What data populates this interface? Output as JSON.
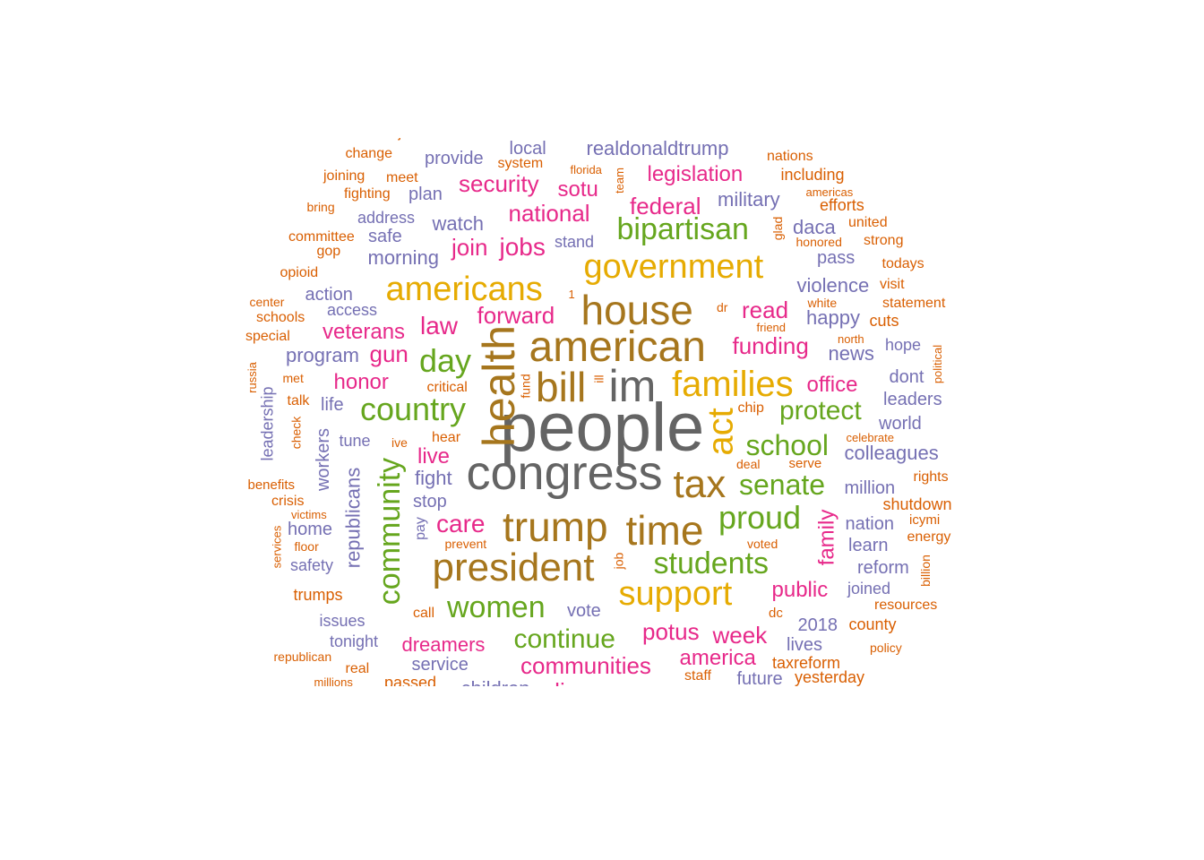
{
  "palette": {
    "gray": "#646464",
    "brown": "#a6761d",
    "gold": "#e6ab02",
    "green": "#66a61e",
    "pink": "#e7298a",
    "purple": "#7570b3",
    "orange": "#d95f02"
  },
  "words": [
    {
      "text": "people",
      "color": "gray"
    },
    {
      "text": "congress",
      "color": "gray"
    },
    {
      "text": "im",
      "color": "gray"
    },
    {
      "text": "american",
      "color": "brown"
    },
    {
      "text": "house",
      "color": "brown"
    },
    {
      "text": "bill",
      "color": "brown"
    },
    {
      "text": "health",
      "color": "brown"
    },
    {
      "text": "president",
      "color": "brown"
    },
    {
      "text": "trump",
      "color": "brown"
    },
    {
      "text": "time",
      "color": "brown"
    },
    {
      "text": "tax",
      "color": "brown"
    },
    {
      "text": "act",
      "color": "gold"
    },
    {
      "text": "families",
      "color": "gold"
    },
    {
      "text": "americans",
      "color": "gold"
    },
    {
      "text": "government",
      "color": "gold"
    },
    {
      "text": "support",
      "color": "gold"
    },
    {
      "text": "day",
      "color": "green"
    },
    {
      "text": "country",
      "color": "green"
    },
    {
      "text": "bipartisan",
      "color": "green"
    },
    {
      "text": "community",
      "color": "green"
    },
    {
      "text": "proud",
      "color": "green"
    },
    {
      "text": "students",
      "color": "green"
    },
    {
      "text": "senate",
      "color": "green"
    },
    {
      "text": "school",
      "color": "green"
    },
    {
      "text": "protect",
      "color": "green"
    },
    {
      "text": "women",
      "color": "green"
    },
    {
      "text": "continue",
      "color": "green"
    },
    {
      "text": "national",
      "color": "pink"
    },
    {
      "text": "security",
      "color": "pink"
    },
    {
      "text": "jobs",
      "color": "pink"
    },
    {
      "text": "join",
      "color": "pink"
    },
    {
      "text": "law",
      "color": "pink"
    },
    {
      "text": "forward",
      "color": "pink"
    },
    {
      "text": "veterans",
      "color": "pink"
    },
    {
      "text": "gun",
      "color": "pink"
    },
    {
      "text": "honor",
      "color": "pink"
    },
    {
      "text": "live",
      "color": "pink"
    },
    {
      "text": "care",
      "color": "pink"
    },
    {
      "text": "sotu",
      "color": "pink"
    },
    {
      "text": "federal",
      "color": "pink"
    },
    {
      "text": "legislation",
      "color": "pink"
    },
    {
      "text": "read",
      "color": "pink"
    },
    {
      "text": "funding",
      "color": "pink"
    },
    {
      "text": "office",
      "color": "pink"
    },
    {
      "text": "family",
      "color": "pink"
    },
    {
      "text": "public",
      "color": "pink"
    },
    {
      "text": "potus",
      "color": "pink"
    },
    {
      "text": "week",
      "color": "pink"
    },
    {
      "text": "america",
      "color": "pink"
    },
    {
      "text": "communities",
      "color": "pink"
    },
    {
      "text": "dreamers",
      "color": "pink"
    },
    {
      "text": "realdonaldtrump",
      "color": "purple"
    },
    {
      "text": "local",
      "color": "purple"
    },
    {
      "text": "provide",
      "color": "purple"
    },
    {
      "text": "plan",
      "color": "purple"
    },
    {
      "text": "watch",
      "color": "purple"
    },
    {
      "text": "address",
      "color": "purple"
    },
    {
      "text": "safe",
      "color": "purple"
    },
    {
      "text": "morning",
      "color": "purple"
    },
    {
      "text": "stand",
      "color": "purple"
    },
    {
      "text": "military",
      "color": "purple"
    },
    {
      "text": "daca",
      "color": "purple"
    },
    {
      "text": "pass",
      "color": "purple"
    },
    {
      "text": "violence",
      "color": "purple"
    },
    {
      "text": "happy",
      "color": "purple"
    },
    {
      "text": "news",
      "color": "purple"
    },
    {
      "text": "hope",
      "color": "purple"
    },
    {
      "text": "dont",
      "color": "purple"
    },
    {
      "text": "leaders",
      "color": "purple"
    },
    {
      "text": "world",
      "color": "purple"
    },
    {
      "text": "colleagues",
      "color": "purple"
    },
    {
      "text": "million",
      "color": "purple"
    },
    {
      "text": "nation",
      "color": "purple"
    },
    {
      "text": "learn",
      "color": "purple"
    },
    {
      "text": "reform",
      "color": "purple"
    },
    {
      "text": "joined",
      "color": "purple"
    },
    {
      "text": "action",
      "color": "purple"
    },
    {
      "text": "access",
      "color": "purple"
    },
    {
      "text": "program",
      "color": "purple"
    },
    {
      "text": "life",
      "color": "purple"
    },
    {
      "text": "tune",
      "color": "purple"
    },
    {
      "text": "workers",
      "color": "purple"
    },
    {
      "text": "republicans",
      "color": "purple"
    },
    {
      "text": "leadership",
      "color": "purple"
    },
    {
      "text": "fight",
      "color": "purple"
    },
    {
      "text": "stop",
      "color": "purple"
    },
    {
      "text": "home",
      "color": "purple"
    },
    {
      "text": "safety",
      "color": "purple"
    },
    {
      "text": "pay",
      "color": "purple"
    },
    {
      "text": "vote",
      "color": "purple"
    },
    {
      "text": "issues",
      "color": "purple"
    },
    {
      "text": "tonight",
      "color": "purple"
    },
    {
      "text": "service",
      "color": "purple"
    },
    {
      "text": "children",
      "color": "purple"
    },
    {
      "text": "2018",
      "color": "purple"
    },
    {
      "text": "lives",
      "color": "purple"
    },
    {
      "text": "future",
      "color": "purple"
    },
    {
      "text": "discuss",
      "color": "pink"
    },
    {
      "text": "justice",
      "color": "orange"
    },
    {
      "text": "change",
      "color": "orange"
    },
    {
      "text": "system",
      "color": "orange"
    },
    {
      "text": "joining",
      "color": "orange"
    },
    {
      "text": "meet",
      "color": "orange"
    },
    {
      "text": "fighting",
      "color": "orange"
    },
    {
      "text": "bring",
      "color": "orange"
    },
    {
      "text": "committee",
      "color": "orange"
    },
    {
      "text": "gop",
      "color": "orange"
    },
    {
      "text": "opioid",
      "color": "orange"
    },
    {
      "text": "center",
      "color": "orange"
    },
    {
      "text": "schools",
      "color": "orange"
    },
    {
      "text": "special",
      "color": "orange"
    },
    {
      "text": "russia",
      "color": "orange"
    },
    {
      "text": "met",
      "color": "orange"
    },
    {
      "text": "talk",
      "color": "orange"
    },
    {
      "text": "check",
      "color": "orange"
    },
    {
      "text": "benefits",
      "color": "orange"
    },
    {
      "text": "crisis",
      "color": "orange"
    },
    {
      "text": "victims",
      "color": "orange"
    },
    {
      "text": "services",
      "color": "orange"
    },
    {
      "text": "floor",
      "color": "orange"
    },
    {
      "text": "trumps",
      "color": "orange"
    },
    {
      "text": "republican",
      "color": "orange"
    },
    {
      "text": "real",
      "color": "orange"
    },
    {
      "text": "millions",
      "color": "orange"
    },
    {
      "text": "passed",
      "color": "orange"
    },
    {
      "text": "florida",
      "color": "orange"
    },
    {
      "text": "team",
      "color": "orange"
    },
    {
      "text": "nations",
      "color": "orange"
    },
    {
      "text": "including",
      "color": "orange"
    },
    {
      "text": "americas",
      "color": "orange"
    },
    {
      "text": "efforts",
      "color": "orange"
    },
    {
      "text": "united",
      "color": "orange"
    },
    {
      "text": "glad",
      "color": "orange"
    },
    {
      "text": "honored",
      "color": "orange"
    },
    {
      "text": "strong",
      "color": "orange"
    },
    {
      "text": "todays",
      "color": "orange"
    },
    {
      "text": "visit",
      "color": "orange"
    },
    {
      "text": "white",
      "color": "orange"
    },
    {
      "text": "statement",
      "color": "orange"
    },
    {
      "text": "1",
      "color": "orange"
    },
    {
      "text": "dr",
      "color": "orange"
    },
    {
      "text": "friend",
      "color": "orange"
    },
    {
      "text": "cuts",
      "color": "orange"
    },
    {
      "text": "north",
      "color": "orange"
    },
    {
      "text": "political",
      "color": "orange"
    },
    {
      "text": "ill",
      "color": "orange"
    },
    {
      "text": "fund",
      "color": "orange"
    },
    {
      "text": "critical",
      "color": "orange"
    },
    {
      "text": "chip",
      "color": "orange"
    },
    {
      "text": "celebrate",
      "color": "orange"
    },
    {
      "text": "ive",
      "color": "orange"
    },
    {
      "text": "hear",
      "color": "orange"
    },
    {
      "text": "deal",
      "color": "orange"
    },
    {
      "text": "serve",
      "color": "orange"
    },
    {
      "text": "rights",
      "color": "orange"
    },
    {
      "text": "shutdown",
      "color": "orange"
    },
    {
      "text": "icymi",
      "color": "orange"
    },
    {
      "text": "energy",
      "color": "orange"
    },
    {
      "text": "prevent",
      "color": "orange"
    },
    {
      "text": "voted",
      "color": "orange"
    },
    {
      "text": "billion",
      "color": "orange"
    },
    {
      "text": "job",
      "color": "orange"
    },
    {
      "text": "call",
      "color": "orange"
    },
    {
      "text": "dc",
      "color": "orange"
    },
    {
      "text": "county",
      "color": "orange"
    },
    {
      "text": "resources",
      "color": "orange"
    },
    {
      "text": "policy",
      "color": "orange"
    },
    {
      "text": "taxreform",
      "color": "orange"
    },
    {
      "text": "staff",
      "color": "orange"
    },
    {
      "text": "yesterday",
      "color": "orange"
    }
  ]
}
